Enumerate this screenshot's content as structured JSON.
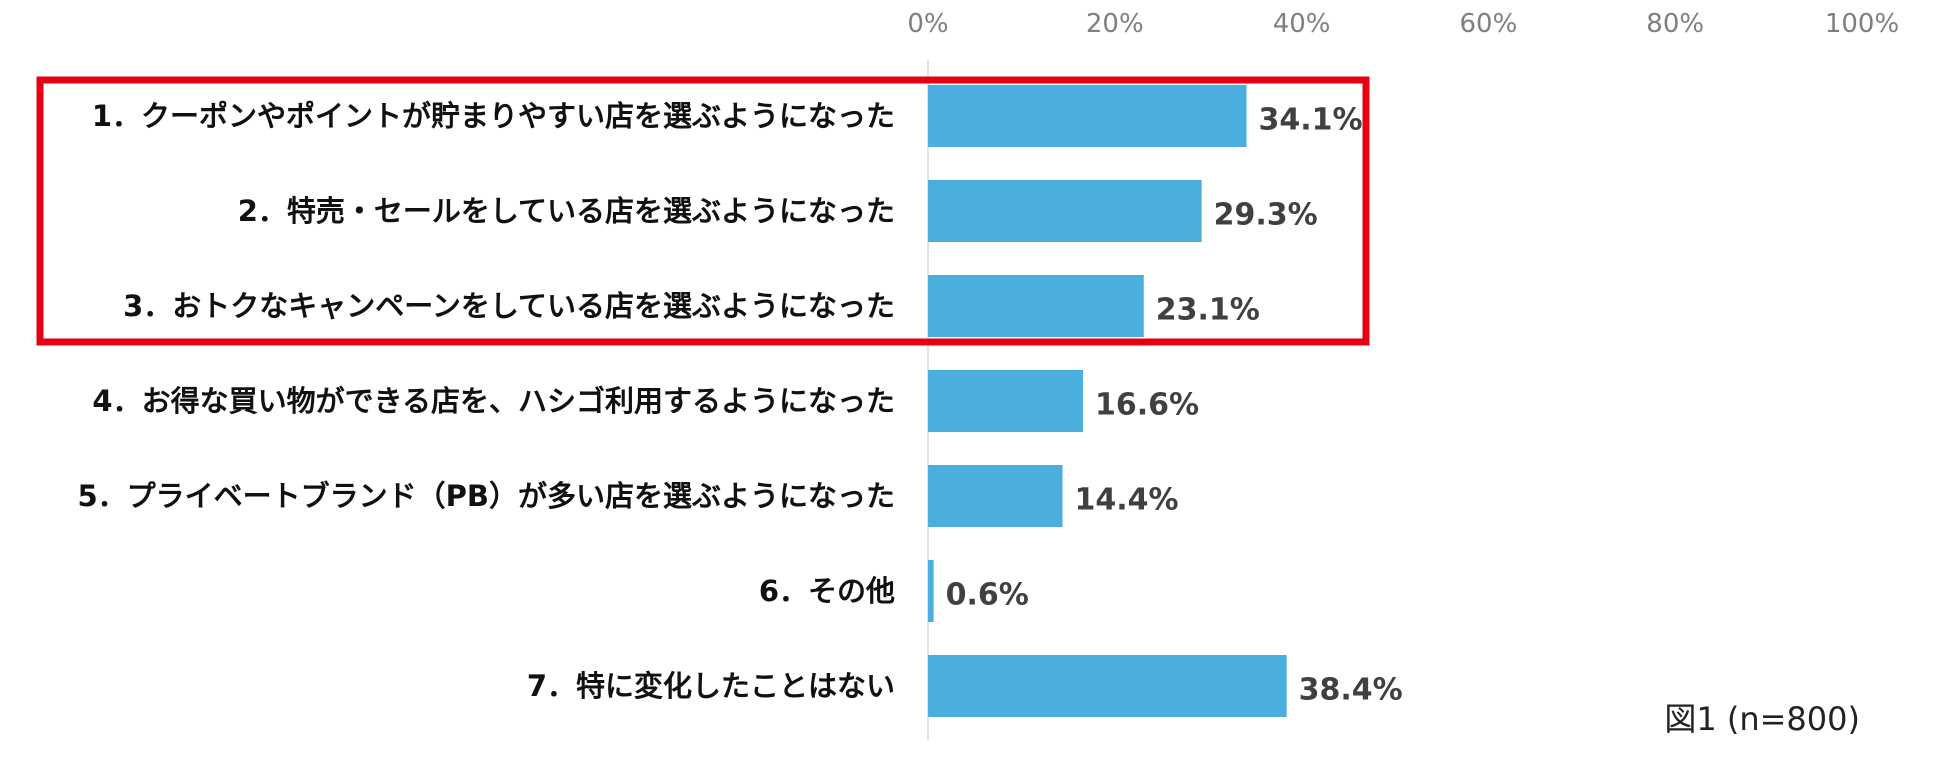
{
  "chart_data": {
    "type": "bar",
    "orientation": "horizontal",
    "categories": [
      "1．クーポンやポイントが貯まりやすい店を選ぶようになった",
      "2．特売・セールをしている店を選ぶようになった",
      "3．おトクなキャンペーンをしている店を選ぶようになった",
      "4．お得な買い物ができる店を、ハシゴ利用するようになった",
      "5．プライベートブランド（PB）が多い店を選ぶようになった",
      "6．その他",
      "7．特に変化したことはない"
    ],
    "values": [
      34.1,
      29.3,
      23.1,
      16.6,
      14.4,
      0.6,
      38.4
    ],
    "value_labels": [
      "34.1%",
      "29.3%",
      "23.1%",
      "16.6%",
      "14.4%",
      "0.6%",
      "38.4%"
    ],
    "x_ticks": [
      "0%",
      "20%",
      "40%",
      "60%",
      "80%",
      "100%"
    ],
    "xlim": [
      0,
      100
    ],
    "axis_position": "top",
    "grid": false,
    "bar_color": "#4aaedf",
    "highlight_box_color": "#e60012",
    "highlighted_categories": [
      0,
      1,
      2
    ],
    "caption": "図1 (n=800)"
  }
}
